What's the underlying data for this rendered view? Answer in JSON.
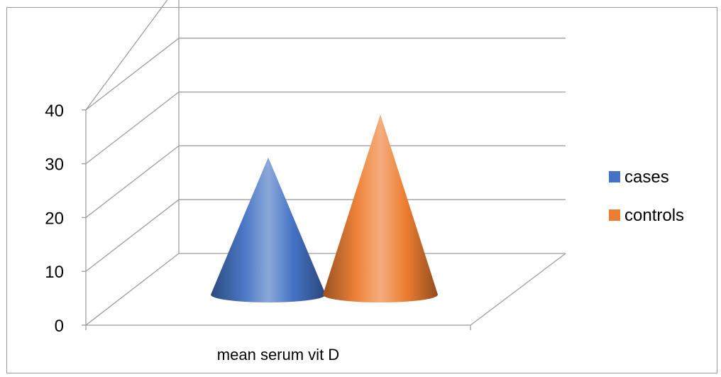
{
  "chart_data": {
    "type": "bar",
    "style": "3d-cone",
    "categories": [
      "mean serum vit D"
    ],
    "series": [
      {
        "name": "cases",
        "values": [
          25.5
        ],
        "color": "#4472C4"
      },
      {
        "name": "controls",
        "values": [
          33.5
        ],
        "color": "#ED7D31"
      }
    ],
    "ylim": [
      0,
      40
    ],
    "yticks": [
      0,
      10,
      20,
      30,
      40
    ],
    "grid": true,
    "legend": "right"
  }
}
